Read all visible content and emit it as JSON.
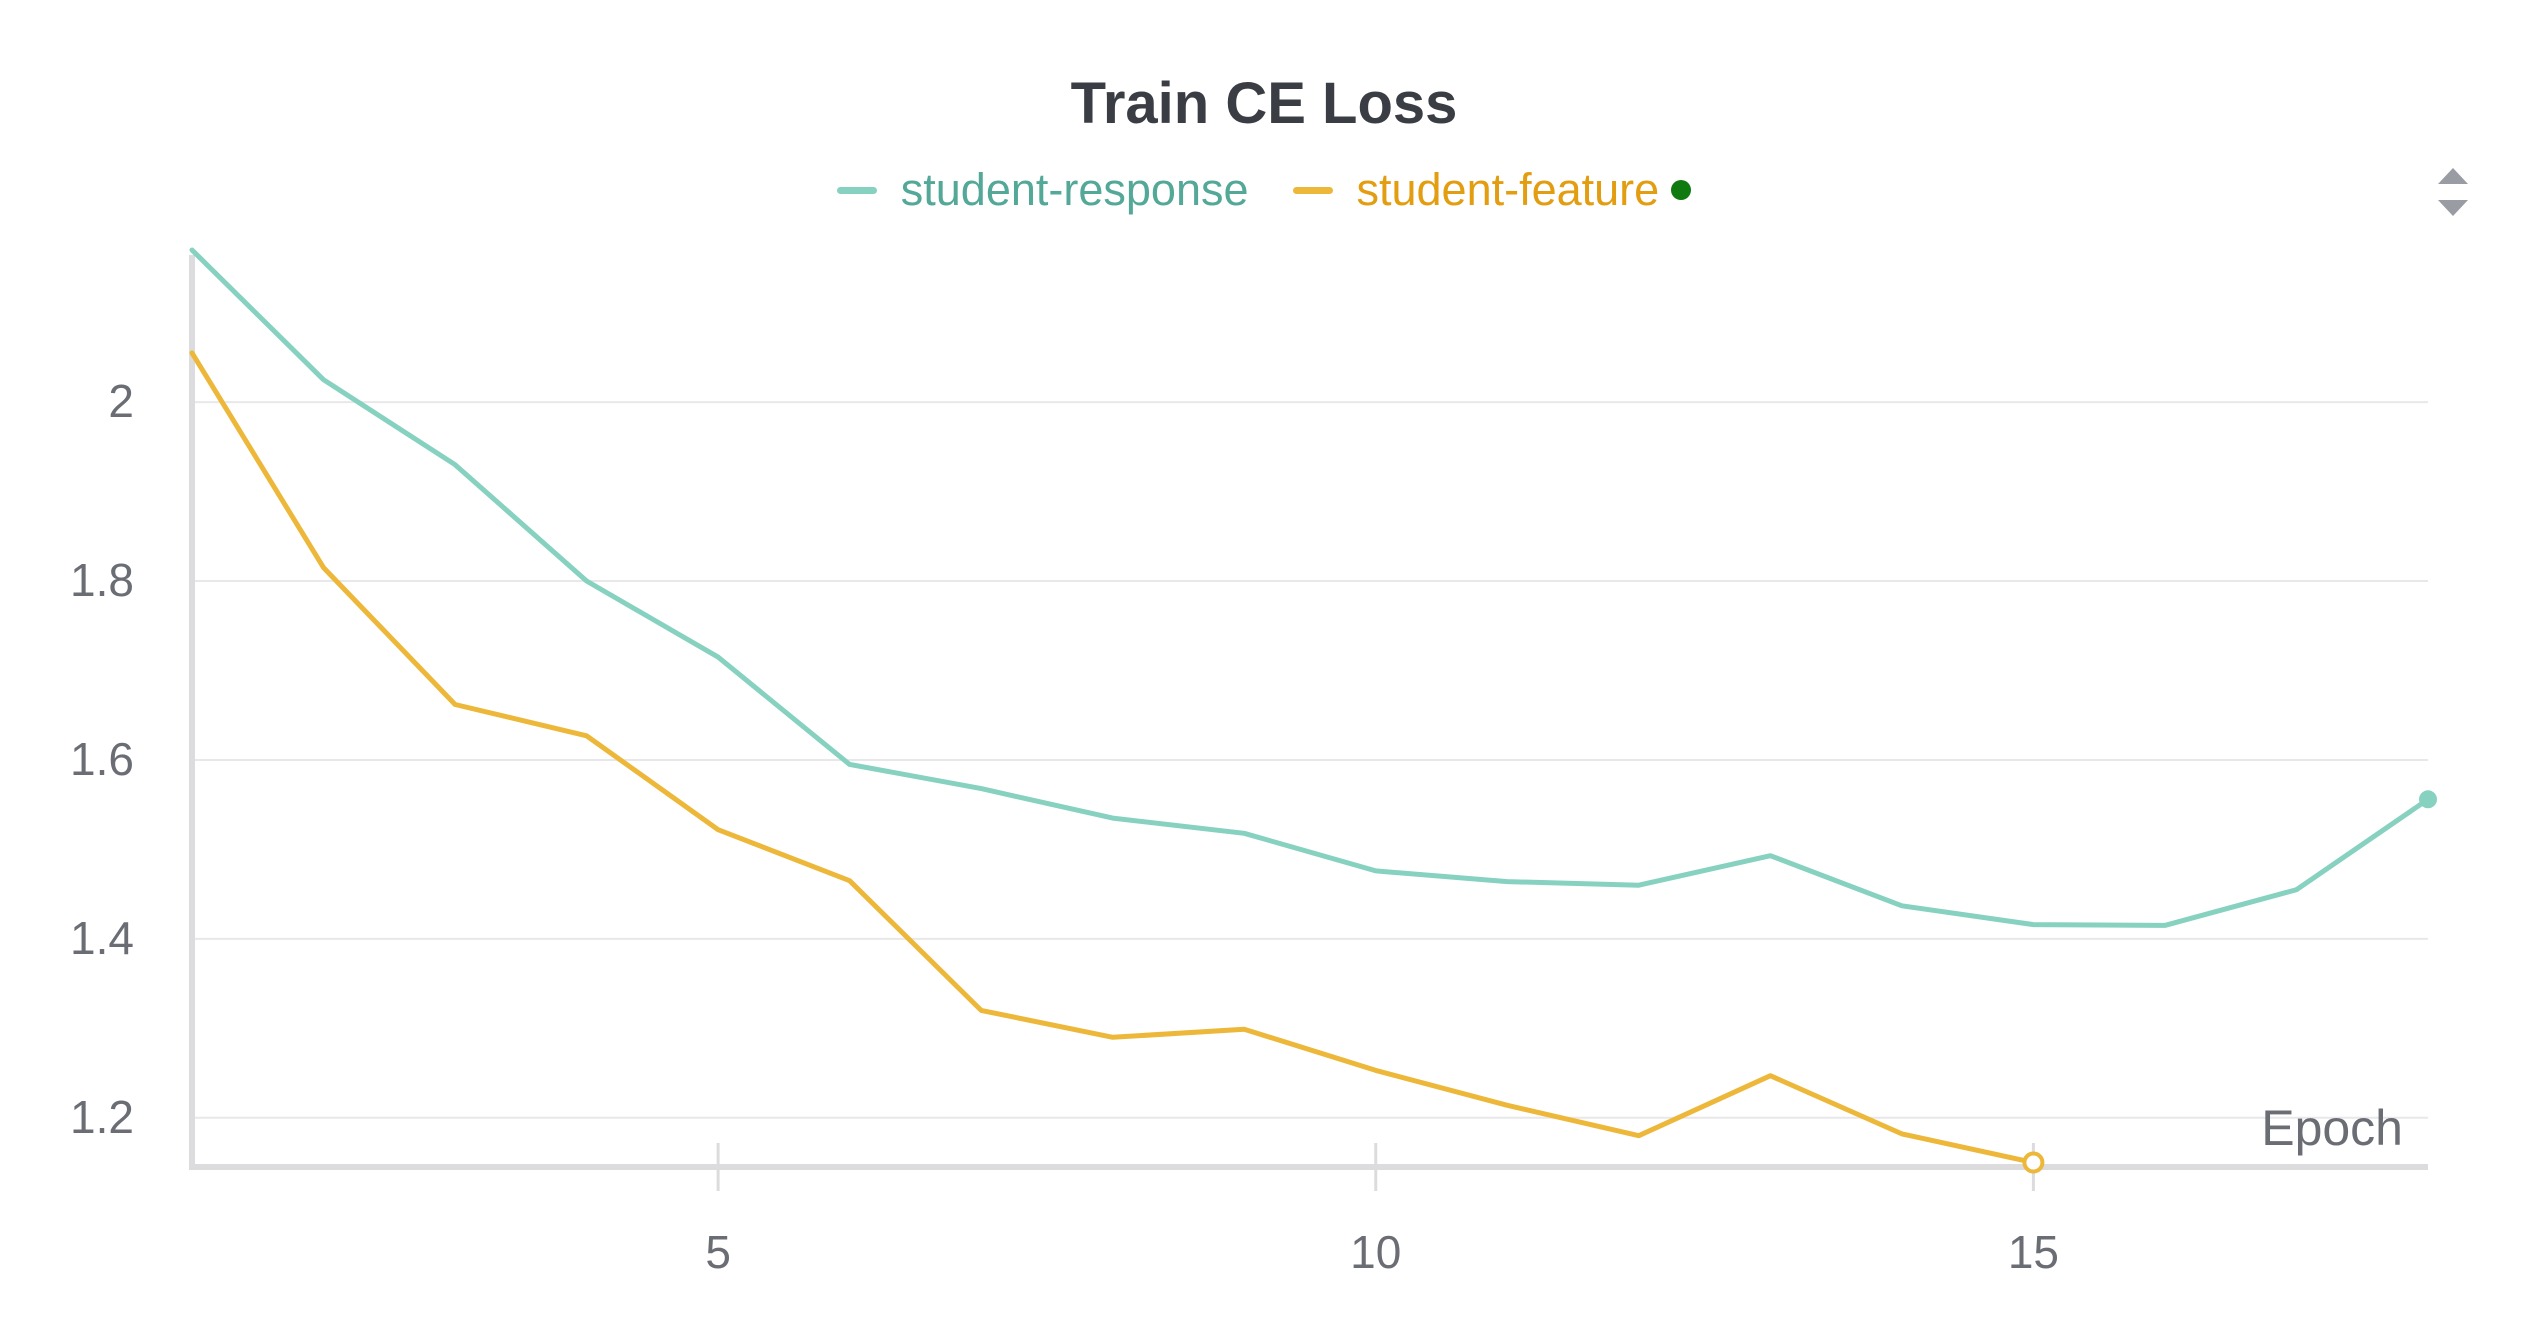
{
  "chart_data": {
    "type": "line",
    "title": "Train CE Loss",
    "xlabel": "Epoch",
    "ylabel": "",
    "xlim": [
      1,
      18
    ],
    "ylim": [
      1.145,
      2.17
    ],
    "x_ticks": [
      5,
      10,
      15
    ],
    "y_ticks": [
      1.2,
      1.4,
      1.6,
      1.8,
      2
    ],
    "y_tick_labels": [
      "1.2",
      "1.4",
      "1.6",
      "1.8",
      "2"
    ],
    "x_tick_labels": [
      "5",
      "10",
      "15"
    ],
    "grid": "horizontal",
    "legend_position": "top-center",
    "series": [
      {
        "name": "student-response",
        "color": "#87d1c0",
        "label_color": "#53a898",
        "x": [
          1,
          2,
          3,
          4,
          5,
          6,
          7,
          8,
          9,
          10,
          11,
          12,
          13,
          14,
          15,
          16,
          17,
          18
        ],
        "values": [
          2.17,
          2.025,
          1.93,
          1.8,
          1.715,
          1.595,
          1.568,
          1.535,
          1.518,
          1.476,
          1.464,
          1.46,
          1.493,
          1.437,
          1.416,
          1.415,
          1.455,
          1.556
        ],
        "end_marker": "filled"
      },
      {
        "name": "student-feature",
        "color": "#edb73a",
        "label_color": "#e39d10",
        "x": [
          1,
          2,
          3,
          4,
          5,
          6,
          7,
          8,
          9,
          10,
          11,
          12,
          13,
          14,
          15
        ],
        "values": [
          2.055,
          1.815,
          1.662,
          1.627,
          1.522,
          1.465,
          1.32,
          1.29,
          1.299,
          1.253,
          1.214,
          1.18,
          1.247,
          1.182,
          1.15
        ],
        "end_marker": "hollow",
        "status_dot_color": "#0f7a10"
      }
    ]
  }
}
